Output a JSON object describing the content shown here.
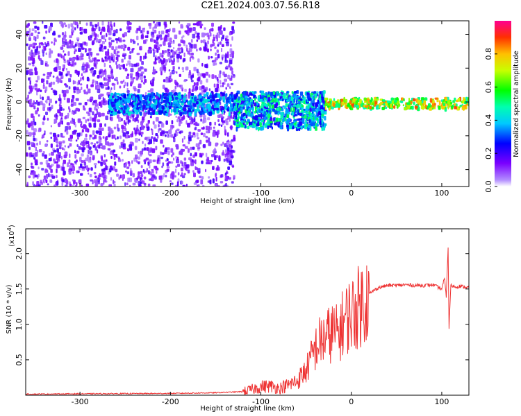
{
  "title": "C2E1.2024.003.07.56.R18",
  "colors": {
    "series": "#ee3333",
    "axis": "#000000"
  },
  "chart_data": [
    {
      "type": "heatmap",
      "title": "",
      "xlabel": "Height of straight line (km)",
      "ylabel": "Frequency (Hz)",
      "xlim": [
        -360,
        130
      ],
      "ylim": [
        -50,
        48
      ],
      "xticks": [
        -300,
        -200,
        -100,
        0,
        100
      ],
      "xtick_labels": [
        "-300",
        "-200",
        "-100",
        "0",
        "100"
      ],
      "yticks": [
        -40,
        -20,
        0,
        20,
        40
      ],
      "ytick_labels": [
        "-40",
        "-20",
        "0",
        "20",
        "40"
      ],
      "description_regions": [
        {
          "x": [
            -360,
            -130
          ],
          "y": [
            -50,
            48
          ],
          "amplitude": [
            0.05,
            0.2
          ]
        },
        {
          "x": [
            -270,
            -130
          ],
          "y": [
            -6,
            6
          ],
          "amplitude": [
            0.2,
            0.45
          ]
        },
        {
          "x": [
            -130,
            -30
          ],
          "y": [
            -15,
            7
          ],
          "amplitude": [
            0.2,
            0.55
          ]
        },
        {
          "x": [
            -30,
            130
          ],
          "y": [
            -3,
            3
          ],
          "amplitude": [
            0.45,
            0.9
          ]
        }
      ],
      "colorbar": {
        "label": "Normalized spectral amplitude",
        "range": [
          0,
          1
        ],
        "ticks": [
          0.0,
          0.2,
          0.4,
          0.6,
          0.8
        ],
        "tick_labels": [
          "0.0",
          "0.2",
          "0.4",
          "0.6",
          "0.8"
        ]
      }
    },
    {
      "type": "line",
      "title": "",
      "xlabel": "Height of straight line (km)",
      "ylabel": "SNR (10 * v/v)",
      "scale_note": "(x10",
      "scale_exp": "4",
      "scale_close": ")",
      "xlim": [
        -360,
        130
      ],
      "ylim": [
        0,
        23500
      ],
      "xticks": [
        -300,
        -200,
        -100,
        0,
        100
      ],
      "xtick_labels": [
        "-300",
        "-200",
        "-100",
        "0",
        "100"
      ],
      "yticks": [
        5000,
        10000,
        15000,
        20000
      ],
      "ytick_labels": [
        "0.5",
        "1.0",
        "1.5",
        "2.0"
      ],
      "series": [
        {
          "x": [
            -360,
            -300,
            -200,
            -150,
            -120,
            -110,
            -100,
            -90,
            -80,
            -70,
            -60,
            -50,
            -45,
            -40,
            -35,
            -30,
            -25,
            -20,
            -15,
            -10,
            -5,
            0,
            5,
            10,
            15,
            20,
            25,
            30,
            40,
            50,
            60,
            70,
            80,
            90,
            95,
            100,
            103,
            105,
            107,
            108,
            110,
            115,
            120,
            130
          ],
          "y": [
            150,
            200,
            250,
            350,
            500,
            800,
            1200,
            1300,
            1000,
            1400,
            2000,
            3500,
            5000,
            6500,
            7500,
            8000,
            8500,
            9000,
            8500,
            10000,
            11000,
            11500,
            12000,
            12800,
            13500,
            14300,
            14800,
            15200,
            15500,
            15500,
            15600,
            15500,
            15500,
            15600,
            15300,
            15000,
            16500,
            14000,
            21000,
            9500,
            15500,
            15300,
            15400,
            15200
          ]
        }
      ]
    }
  ]
}
